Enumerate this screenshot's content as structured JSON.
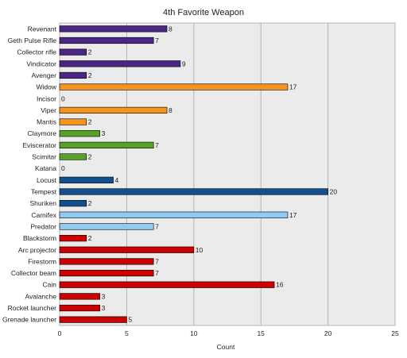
{
  "chart_data": {
    "type": "bar",
    "orientation": "horizontal",
    "title": "4th Favorite Weapon",
    "xlabel": "Count",
    "ylabel": "",
    "xlim": [
      0,
      25
    ],
    "xticks": [
      0,
      5,
      10,
      15,
      20,
      25
    ],
    "grid": true,
    "legend": "none",
    "categories": [
      "Revenant",
      "Geth Pulse Rifle",
      "Collector rifle",
      "Vindicator",
      "Avenger",
      "Widow",
      "Incisor",
      "Viper",
      "Mantis",
      "Claymore",
      "Eviscerator",
      "Scimitar",
      "Katana",
      "Locust",
      "Tempest",
      "Shuriken",
      "Carnifex",
      "Predator",
      "Blackstorm",
      "Arc projector",
      "Firestorm",
      "Collector beam",
      "Cain",
      "Avalanche",
      "Rocket launcher",
      "Grenade launcher"
    ],
    "values": [
      8,
      7,
      2,
      9,
      2,
      17,
      0,
      8,
      2,
      3,
      7,
      2,
      0,
      4,
      20,
      2,
      17,
      7,
      2,
      10,
      7,
      7,
      16,
      3,
      3,
      5
    ],
    "bar_colors": [
      "#4b2683",
      "#4b2683",
      "#4b2683",
      "#4b2683",
      "#4b2683",
      "#f7941d",
      "#f7941d",
      "#f7941d",
      "#f7941d",
      "#57a12a",
      "#57a12a",
      "#57a12a",
      "#57a12a",
      "#134f8e",
      "#134f8e",
      "#134f8e",
      "#8fcbf3",
      "#8fcbf3",
      "#cc0000",
      "#cc0000",
      "#cc0000",
      "#cc0000",
      "#cc0000",
      "#cc0000",
      "#cc0000",
      "#cc0000"
    ],
    "colors": {
      "background": "#ffffff",
      "plot_background": "#ebebeb",
      "grid": "#b4b4b4",
      "bar_outline": "#000000",
      "text": "#222222"
    }
  }
}
